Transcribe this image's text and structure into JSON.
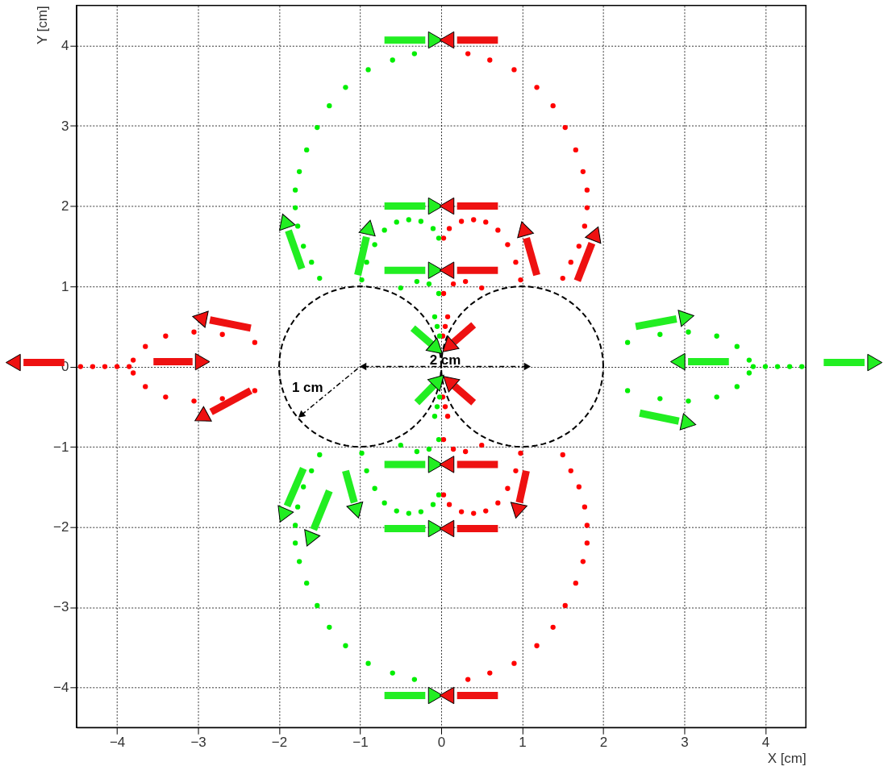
{
  "chart_data": {
    "type": "scatter",
    "xlabel": "X [cm]",
    "ylabel": "Y [cm]",
    "xlim": [
      -4.5,
      4.5
    ],
    "ylim": [
      -4.5,
      4.5
    ],
    "xticks": [
      -4,
      -3,
      -2,
      -1,
      0,
      1,
      2,
      3,
      4
    ],
    "yticks": [
      -4,
      -3,
      -2,
      -1,
      0,
      1,
      2,
      3,
      4
    ],
    "grid": true,
    "legend": false,
    "marker": "circle",
    "series": [
      {
        "color": "#ff0000",
        "x": [
          0.33,
          0.6,
          0.9,
          1.18,
          1.38,
          1.53,
          1.66,
          1.75,
          1.8,
          1.8,
          1.77,
          1.7,
          1.6,
          1.5,
          0.03,
          0.1,
          0.25,
          0.4,
          0.55,
          0.7,
          0.82,
          0.92,
          0.98,
          0.03,
          0.15,
          0.3,
          0.5,
          0.02,
          0.05,
          0.08,
          -2.3,
          -2.7,
          -3.05,
          -3.4,
          -3.65,
          -3.8,
          -3.85,
          -4.0,
          -4.15,
          -4.3,
          -4.45,
          0.33,
          0.6,
          0.9,
          1.18,
          1.38,
          1.53,
          1.66,
          1.75,
          1.8,
          1.8,
          1.77,
          1.7,
          1.6,
          1.5,
          0.03,
          0.1,
          0.25,
          0.4,
          0.55,
          0.7,
          0.82,
          0.92,
          0.98,
          0.03,
          0.15,
          0.3,
          0.5,
          0.02,
          0.05,
          0.08,
          -2.3,
          -2.7,
          -3.05,
          -3.4,
          -3.65,
          -3.8
        ],
        "values": [
          3.9,
          3.82,
          3.7,
          3.48,
          3.25,
          2.98,
          2.7,
          2.43,
          2.2,
          1.98,
          1.75,
          1.5,
          1.3,
          1.1,
          1.6,
          1.72,
          1.81,
          1.83,
          1.8,
          1.7,
          1.52,
          1.3,
          1.08,
          0.91,
          1.03,
          1.06,
          0.98,
          0.38,
          0.5,
          0.62,
          0.3,
          0.4,
          0.43,
          0.38,
          0.25,
          0.08,
          0,
          0,
          0,
          0,
          0,
          -3.9,
          -3.82,
          -3.7,
          -3.48,
          -3.25,
          -2.98,
          -2.7,
          -2.43,
          -2.2,
          -1.98,
          -1.75,
          -1.5,
          -1.3,
          -1.1,
          -1.6,
          -1.72,
          -1.81,
          -1.83,
          -1.8,
          -1.7,
          -1.52,
          -1.3,
          -1.08,
          -0.91,
          -1.03,
          -1.06,
          -0.98,
          -0.38,
          -0.5,
          -0.62,
          -0.3,
          -0.4,
          -0.43,
          -0.38,
          -0.25,
          -0.08
        ]
      },
      {
        "color": "#00ee00",
        "x": [
          -0.33,
          -0.6,
          -0.9,
          -1.18,
          -1.38,
          -1.53,
          -1.66,
          -1.75,
          -1.8,
          -1.8,
          -1.77,
          -1.7,
          -1.6,
          -1.5,
          -0.03,
          -0.1,
          -0.25,
          -0.4,
          -0.55,
          -0.7,
          -0.82,
          -0.92,
          -0.98,
          -0.03,
          -0.15,
          -0.3,
          -0.5,
          -0.02,
          -0.05,
          -0.08,
          2.3,
          2.7,
          3.05,
          3.4,
          3.65,
          3.8,
          3.85,
          4.0,
          4.15,
          4.3,
          4.45,
          -0.33,
          -0.6,
          -0.9,
          -1.18,
          -1.38,
          -1.53,
          -1.66,
          -1.75,
          -1.8,
          -1.8,
          -1.77,
          -1.7,
          -1.6,
          -1.5,
          -0.03,
          -0.1,
          -0.25,
          -0.4,
          -0.55,
          -0.7,
          -0.82,
          -0.92,
          -0.98,
          -0.03,
          -0.15,
          -0.3,
          -0.5,
          -0.02,
          -0.05,
          -0.08,
          2.3,
          2.7,
          3.05,
          3.4,
          3.65,
          3.8
        ],
        "values": [
          3.9,
          3.82,
          3.7,
          3.48,
          3.25,
          2.98,
          2.7,
          2.43,
          2.2,
          1.98,
          1.75,
          1.5,
          1.3,
          1.1,
          1.6,
          1.72,
          1.81,
          1.83,
          1.8,
          1.7,
          1.52,
          1.3,
          1.08,
          0.91,
          1.03,
          1.06,
          0.98,
          0.38,
          0.5,
          0.62,
          0.3,
          0.4,
          0.43,
          0.38,
          0.25,
          0.08,
          0,
          0,
          0,
          0,
          0,
          -3.9,
          -3.82,
          -3.7,
          -3.48,
          -3.25,
          -2.98,
          -2.7,
          -2.43,
          -2.2,
          -1.98,
          -1.75,
          -1.5,
          -1.3,
          -1.1,
          -1.6,
          -1.72,
          -1.81,
          -1.83,
          -1.8,
          -1.7,
          -1.52,
          -1.3,
          -1.08,
          -0.91,
          -1.03,
          -1.06,
          -0.98,
          -0.38,
          -0.5,
          -0.62,
          -0.3,
          -0.4,
          -0.43,
          -0.38,
          -0.25,
          -0.08
        ]
      }
    ],
    "annotations": [
      "1 cm",
      "2 cm"
    ]
  }
}
